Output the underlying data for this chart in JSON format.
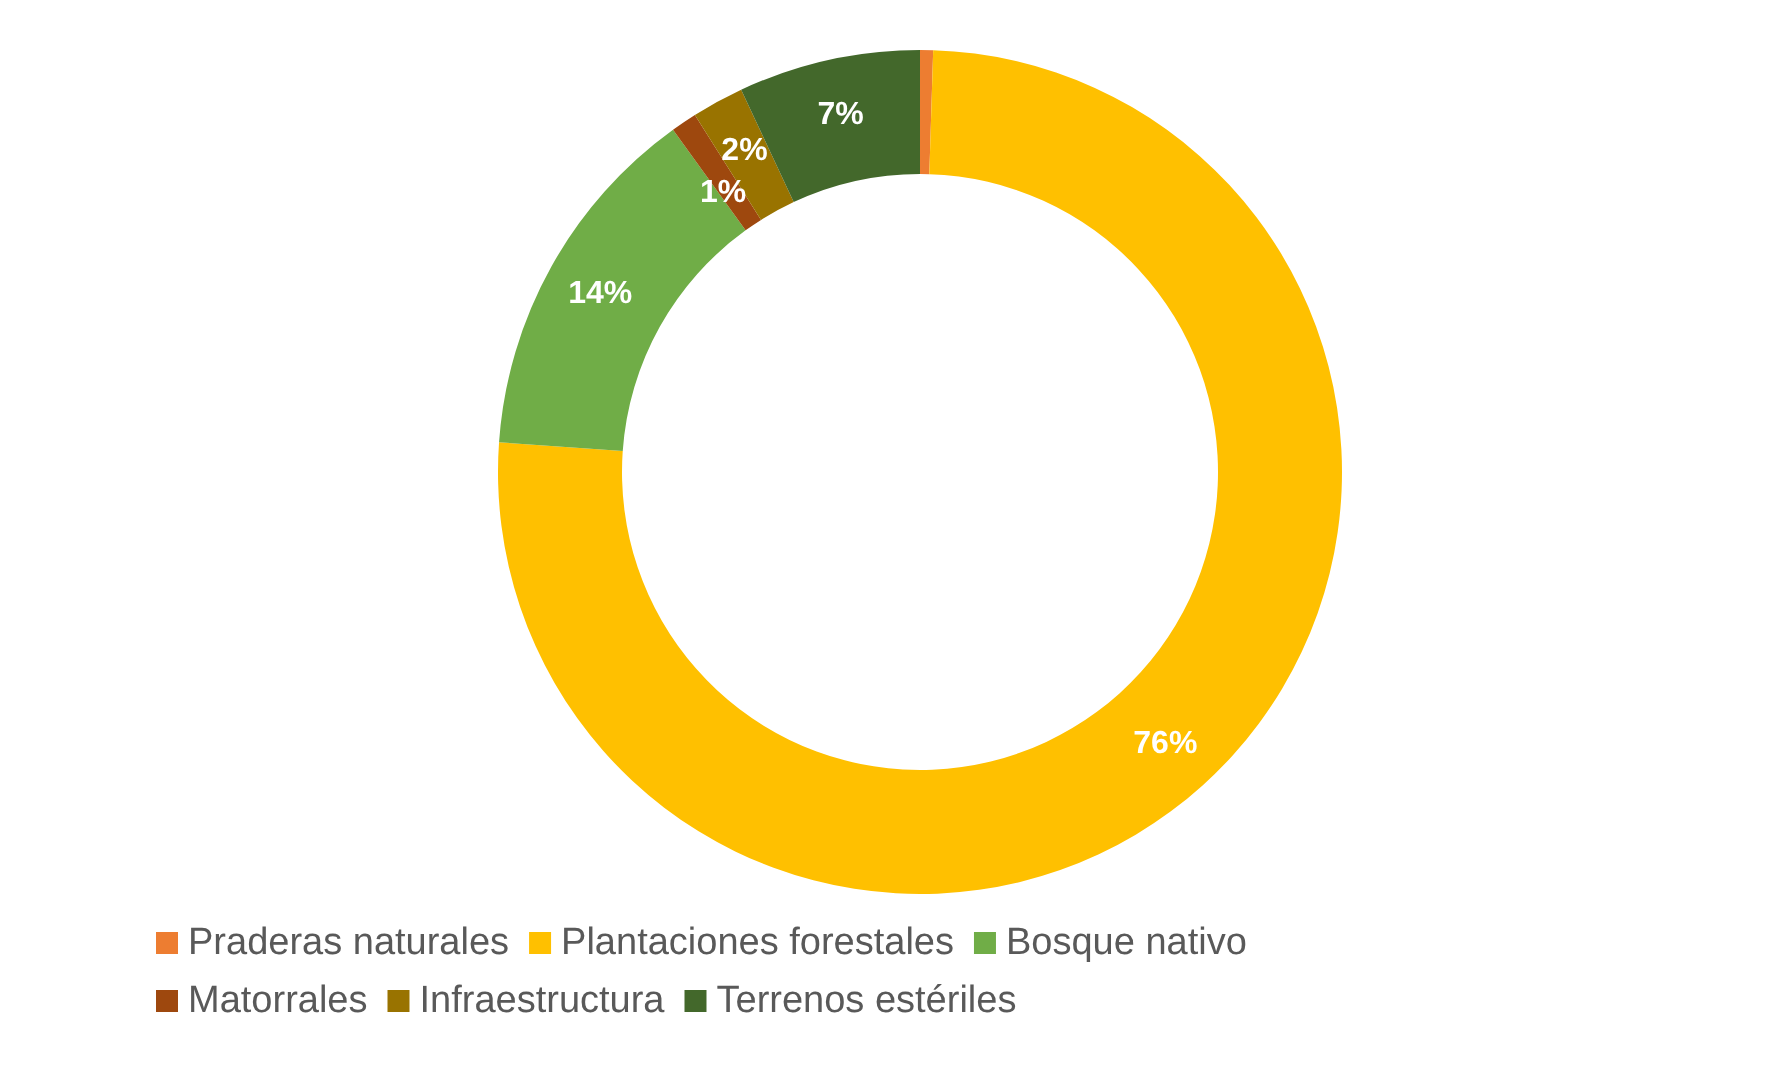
{
  "chart_data": {
    "type": "donut",
    "categories": [
      "Praderas naturales",
      "Plantaciones forestales",
      "Bosque nativo",
      "Matorrales",
      "Infraestructura",
      "Terrenos estériles"
    ],
    "values": [
      0.5,
      76,
      14,
      1,
      2,
      7
    ],
    "colors": [
      "#ed7d31",
      "#ffc000",
      "#70ad47",
      "#9e480e",
      "#997300",
      "#43682b"
    ],
    "value_labels": [
      null,
      "76%",
      "14%",
      "1%",
      "2%",
      "7%"
    ],
    "legend": "bottom"
  }
}
